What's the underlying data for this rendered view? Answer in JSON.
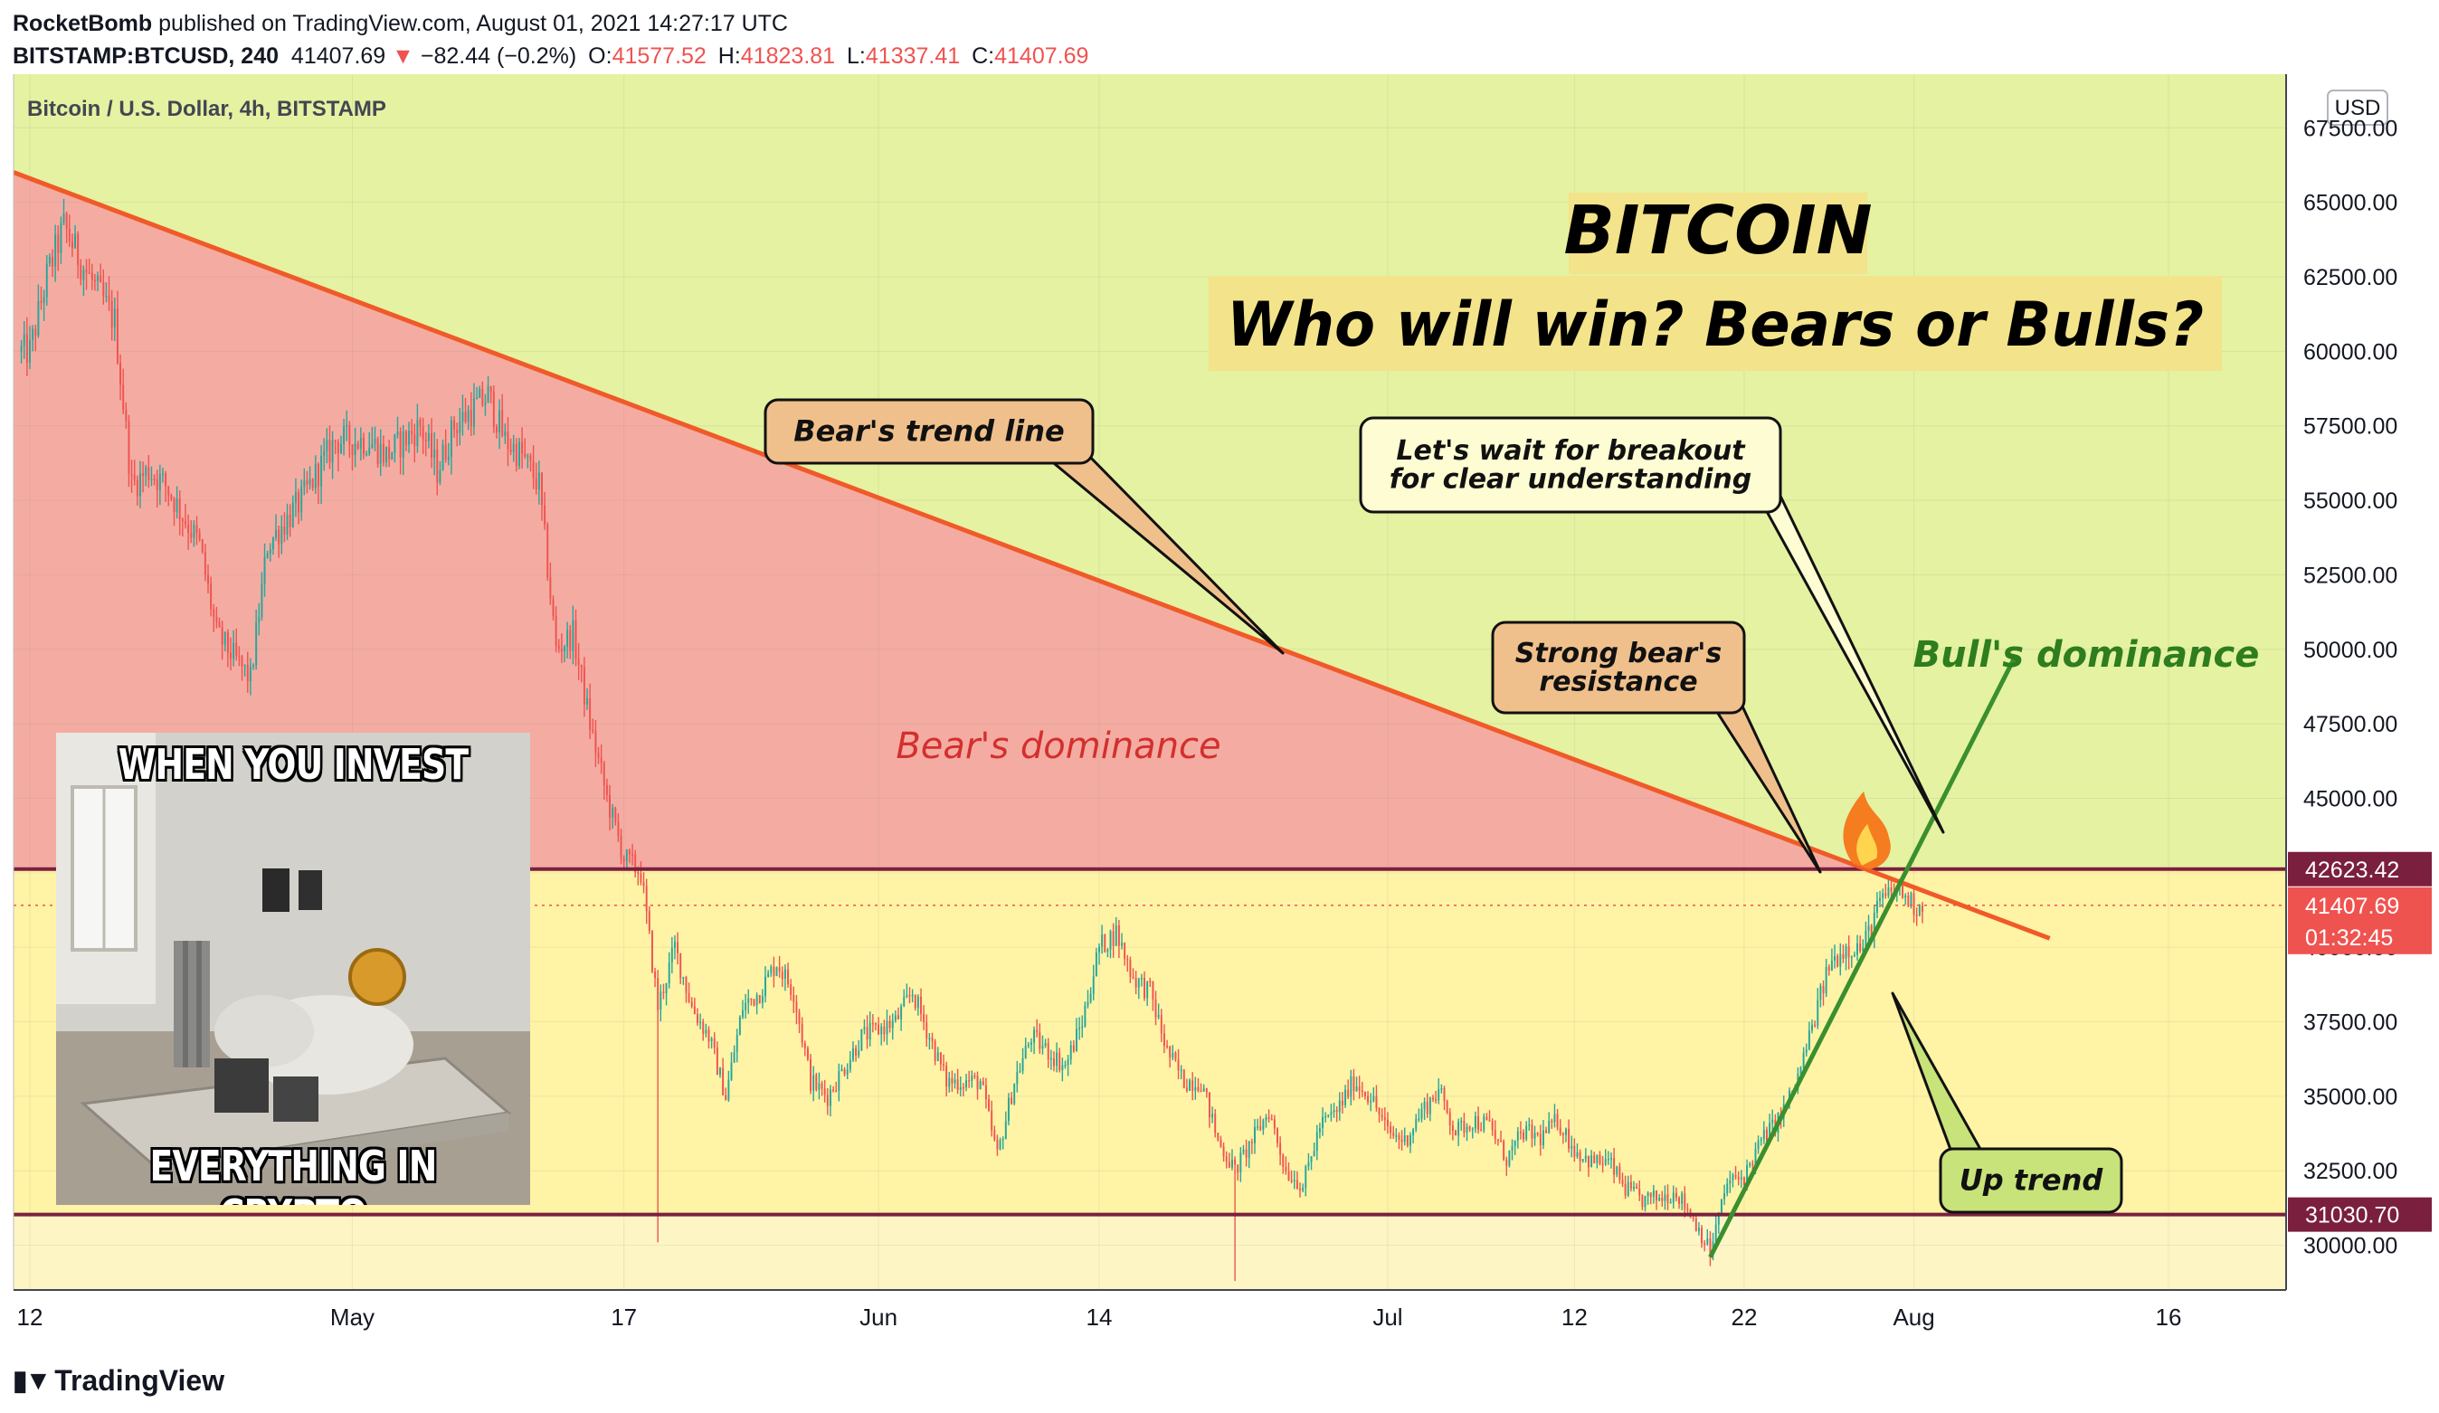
{
  "header": {
    "author": "RocketBomb",
    "published": "published on TradingView.com, August 01, 2021 14:27:17 UTC",
    "symbol": "BITSTAMP:BTCUSD, 240",
    "last": "41407.69",
    "change": "−82.44 (−0.2%)",
    "open_label": "O:",
    "open": "41577.52",
    "high_label": "H:",
    "high": "41823.81",
    "low_label": "L:",
    "low": "41337.41",
    "close_label": "C:",
    "close": "41407.69"
  },
  "footer": {
    "brand": "TradingView"
  },
  "meme": {
    "top_text": "WHEN YOU INVEST",
    "bottom_text": "EVERYTHING IN CRYPTO"
  },
  "chart_data": {
    "type": "candlestick",
    "title": "BITCOIN",
    "subtitle": "Who will win? Bears or Bulls?",
    "legend": "Bitcoin / U.S. Dollar, 4h, BITSTAMP",
    "currency": "USD",
    "ylim": [
      28500,
      69300
    ],
    "y_ticks": [
      67500,
      65000,
      62500,
      60000,
      57500,
      55000,
      52500,
      50000,
      47500,
      45000,
      42500,
      40000,
      37500,
      35000,
      32500,
      30000
    ],
    "x_ticks": [
      {
        "date": "2021-04-12",
        "label": "12"
      },
      {
        "date": "2021-05-01",
        "label": "May"
      },
      {
        "date": "2021-05-17",
        "label": "17"
      },
      {
        "date": "2021-06-01",
        "label": "Jun"
      },
      {
        "date": "2021-06-14",
        "label": "14"
      },
      {
        "date": "2021-07-01",
        "label": "Jul"
      },
      {
        "date": "2021-07-12",
        "label": "12"
      },
      {
        "date": "2021-07-22",
        "label": "22"
      },
      {
        "date": "2021-08-01",
        "label": "Aug"
      },
      {
        "date": "2021-08-16",
        "label": "16"
      }
    ],
    "price_path": [
      [
        "2021-04-12",
        60000
      ],
      [
        "2021-04-13",
        62500
      ],
      [
        "2021-04-14",
        64200
      ],
      [
        "2021-04-15",
        63000
      ],
      [
        "2021-04-16",
        62000
      ],
      [
        "2021-04-17",
        61000
      ],
      [
        "2021-04-18",
        55500
      ],
      [
        "2021-04-19",
        56000
      ],
      [
        "2021-04-20",
        55500
      ],
      [
        "2021-04-22",
        53500
      ],
      [
        "2021-04-23",
        50500
      ],
      [
        "2021-04-25",
        49000
      ],
      [
        "2021-04-26",
        53500
      ],
      [
        "2021-04-28",
        55000
      ],
      [
        "2021-04-30",
        57000
      ],
      [
        "2021-05-02",
        57000
      ],
      [
        "2021-05-03",
        56500
      ],
      [
        "2021-05-05",
        57500
      ],
      [
        "2021-05-06",
        56000
      ],
      [
        "2021-05-07",
        57500
      ],
      [
        "2021-05-08",
        58000
      ],
      [
        "2021-05-09",
        58500
      ],
      [
        "2021-05-10",
        57000
      ],
      [
        "2021-05-11",
        56500
      ],
      [
        "2021-05-12",
        55500
      ],
      [
        "2021-05-13",
        50000
      ],
      [
        "2021-05-14",
        50500
      ],
      [
        "2021-05-15",
        47500
      ],
      [
        "2021-05-16",
        45000
      ],
      [
        "2021-05-17",
        43000
      ],
      [
        "2021-05-18",
        42500
      ],
      [
        "2021-05-19",
        38000
      ],
      [
        "2021-05-20",
        40000
      ],
      [
        "2021-05-21",
        38000
      ],
      [
        "2021-05-22",
        37000
      ],
      [
        "2021-05-23",
        35000
      ],
      [
        "2021-05-24",
        38000
      ],
      [
        "2021-05-25",
        38500
      ],
      [
        "2021-05-26",
        39500
      ],
      [
        "2021-05-27",
        38500
      ],
      [
        "2021-05-28",
        35500
      ],
      [
        "2021-05-29",
        35000
      ],
      [
        "2021-05-30",
        36000
      ],
      [
        "2021-05-31",
        37000
      ],
      [
        "2021-06-02",
        37500
      ],
      [
        "2021-06-03",
        38500
      ],
      [
        "2021-06-04",
        37000
      ],
      [
        "2021-06-05",
        35500
      ],
      [
        "2021-06-07",
        35500
      ],
      [
        "2021-06-08",
        33000
      ],
      [
        "2021-06-09",
        35500
      ],
      [
        "2021-06-10",
        37000
      ],
      [
        "2021-06-12",
        36000
      ],
      [
        "2021-06-13",
        37500
      ],
      [
        "2021-06-14",
        40000
      ],
      [
        "2021-06-15",
        40500
      ],
      [
        "2021-06-16",
        39000
      ],
      [
        "2021-06-17",
        38500
      ],
      [
        "2021-06-18",
        36500
      ],
      [
        "2021-06-19",
        35500
      ],
      [
        "2021-06-20",
        35500
      ],
      [
        "2021-06-21",
        33500
      ],
      [
        "2021-06-22",
        32500
      ],
      [
        "2021-06-23",
        33500
      ],
      [
        "2021-06-24",
        34500
      ],
      [
        "2021-06-25",
        32500
      ],
      [
        "2021-06-26",
        32000
      ],
      [
        "2021-06-27",
        34000
      ],
      [
        "2021-06-28",
        34500
      ],
      [
        "2021-06-29",
        35500
      ],
      [
        "2021-06-30",
        35000
      ],
      [
        "2021-07-01",
        33800
      ],
      [
        "2021-07-02",
        33500
      ],
      [
        "2021-07-03",
        34500
      ],
      [
        "2021-07-04",
        35200
      ],
      [
        "2021-07-05",
        33800
      ],
      [
        "2021-07-06",
        34200
      ],
      [
        "2021-07-07",
        34000
      ],
      [
        "2021-07-08",
        32900
      ],
      [
        "2021-07-09",
        33800
      ],
      [
        "2021-07-10",
        33600
      ],
      [
        "2021-07-11",
        34200
      ],
      [
        "2021-07-12",
        33200
      ],
      [
        "2021-07-13",
        32800
      ],
      [
        "2021-07-14",
        32800
      ],
      [
        "2021-07-15",
        31900
      ],
      [
        "2021-07-16",
        31500
      ],
      [
        "2021-07-17",
        31600
      ],
      [
        "2021-07-18",
        31800
      ],
      [
        "2021-07-19",
        30900
      ],
      [
        "2021-07-20",
        29800
      ],
      [
        "2021-07-21",
        32100
      ],
      [
        "2021-07-22",
        32300
      ],
      [
        "2021-07-23",
        33500
      ],
      [
        "2021-07-24",
        34200
      ],
      [
        "2021-07-25",
        35300
      ],
      [
        "2021-07-26",
        37300
      ],
      [
        "2021-07-27",
        39400
      ],
      [
        "2021-07-28",
        40000
      ],
      [
        "2021-07-29",
        40000
      ],
      [
        "2021-07-30",
        41500
      ],
      [
        "2021-07-31",
        42000
      ],
      [
        "2021-08-01",
        41400
      ]
    ],
    "bear_trend_line": {
      "from": [
        "2021-04-12",
        65800
      ],
      "to": [
        "2021-08-09",
        40300
      ],
      "color": "#f05a28"
    },
    "bull_trend_line": {
      "from": [
        "2021-07-20",
        29600
      ],
      "to": [
        "2021-08-07",
        49800
      ],
      "color": "#3a8f2e"
    },
    "horizontal_levels": [
      {
        "price": 42623.42,
        "label": "42623.42",
        "color": "#7b1f3f"
      },
      {
        "price": 31030.7,
        "label": "31030.70",
        "color": "#7b1f3f"
      }
    ],
    "last_price": {
      "price": 41407.69,
      "label": "41407.69",
      "countdown": "01:32:45",
      "color": "#ef5350"
    },
    "zones": {
      "bear_color": "#f4aca2",
      "bull_color": "#e4f2a2",
      "range_color": "#fff3a6",
      "lower_color": "#fdf5c4"
    },
    "annotations": {
      "bears_dominance": "Bear's dominance",
      "bulls_dominance": "Bull's dominance",
      "bear_trend": "Bear's trend line",
      "wait_line1": "Let's wait for breakout",
      "wait_line2": "for clear understanding",
      "resist_line1": "Strong bear's",
      "resist_line2": "resistance",
      "uptrend": "Up trend",
      "fire": "🔥"
    }
  }
}
